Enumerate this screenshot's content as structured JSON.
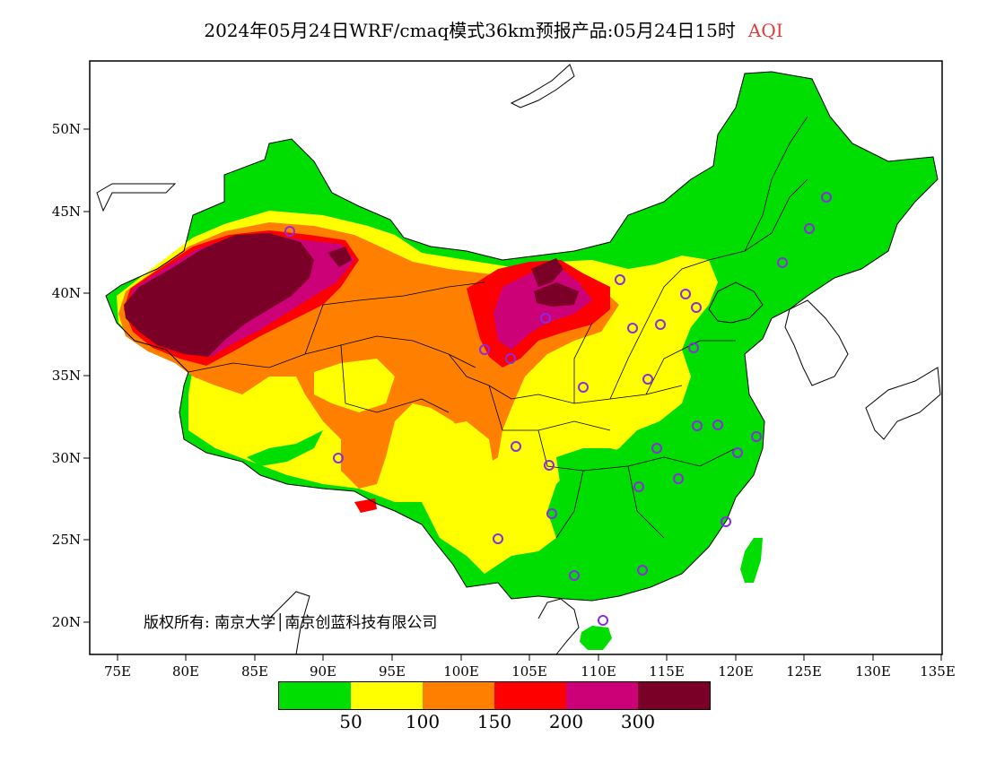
{
  "title": {
    "main": "2024年05月24日WRF/cmaq模式36km预报产品:05月24日15时",
    "variable": "AQI"
  },
  "axes": {
    "lat_labels": [
      "50N",
      "45N",
      "40N",
      "35N",
      "30N",
      "25N",
      "20N"
    ],
    "lon_labels": [
      "75E",
      "80E",
      "85E",
      "90E",
      "95E",
      "100E",
      "105E",
      "110E",
      "115E",
      "120E",
      "125E",
      "130E",
      "135E"
    ]
  },
  "map": {
    "lon_range": [
      73,
      135
    ],
    "lat_range": [
      18,
      54
    ],
    "colors": {
      "green": "#00dd00",
      "yellow": "#ffff00",
      "orange": "#ff8000",
      "red": "#ff0000",
      "magenta": "#cc0077",
      "maroon": "#7a0027",
      "station": "#8a2be2"
    }
  },
  "copyright": "版权所有: 南京大学│南京创蓝科技有限公司",
  "colorbar": {
    "colors": [
      "#00dd00",
      "#ffff00",
      "#ff8000",
      "#ff0000",
      "#cc0077",
      "#7a0027"
    ],
    "labels": [
      "50",
      "100",
      "150",
      "200",
      "300"
    ]
  }
}
